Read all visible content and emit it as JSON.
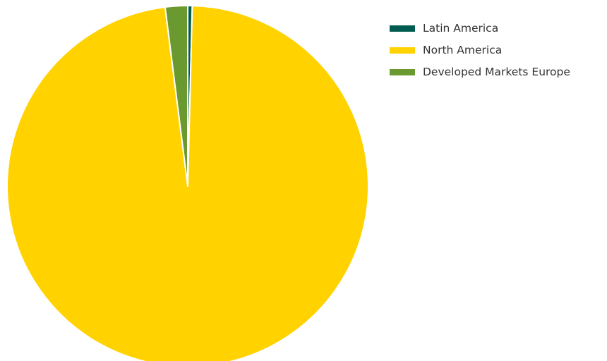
{
  "chart_data": {
    "type": "pie",
    "title": "",
    "start": "top",
    "direction": "clockwise",
    "slices": [
      {
        "label": "Latin America",
        "value": 0.4,
        "color": "#005B50"
      },
      {
        "label": "North America",
        "value": 97.6,
        "color": "#FFD200"
      },
      {
        "label": "Developed Markets Europe",
        "value": 2.0,
        "color": "#6A9A2F"
      }
    ],
    "legend": {
      "position": "right",
      "entries": [
        "Latin America",
        "North America",
        "Developed Markets Europe"
      ]
    }
  }
}
